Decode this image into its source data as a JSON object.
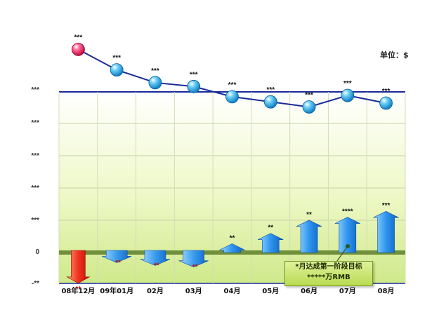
{
  "unit_label": "单位：$",
  "colors": {
    "line": "#1a2a9a",
    "rise": "#1a78e0",
    "fall_red": "#e02020",
    "zero_band": "#6f8f3a"
  },
  "callout": {
    "line1": "*月达成第一阶段目标",
    "line2": "*****万RMB"
  },
  "chart_data": {
    "type": "line+bar",
    "categories": [
      "08年12月",
      "09年01月",
      "02月",
      "03月",
      "04月",
      "05月",
      "06月",
      "07月",
      "08月"
    ],
    "y_tick_labels": [
      "***",
      "***",
      "***",
      "***",
      "***",
      "0",
      "-**"
    ],
    "line_series": {
      "values": [
        80.5,
        72.5,
        67.5,
        66,
        62,
        60,
        58,
        62.5,
        59.5
      ],
      "labels": [
        "***",
        "***",
        "***",
        "***",
        "***",
        "***",
        "***",
        "***",
        "***"
      ],
      "first_point_color": "#e81a55",
      "point_color": "#2aa8e8"
    },
    "bar_series": {
      "values": [
        -9,
        -2,
        -3,
        -3.5,
        3,
        6.5,
        11,
        12,
        14
      ],
      "labels": [
        "**",
        "**",
        "**",
        "**",
        "**",
        "**",
        "**",
        "****",
        "***"
      ]
    },
    "ylim": [
      -10,
      85
    ],
    "grid": true
  }
}
